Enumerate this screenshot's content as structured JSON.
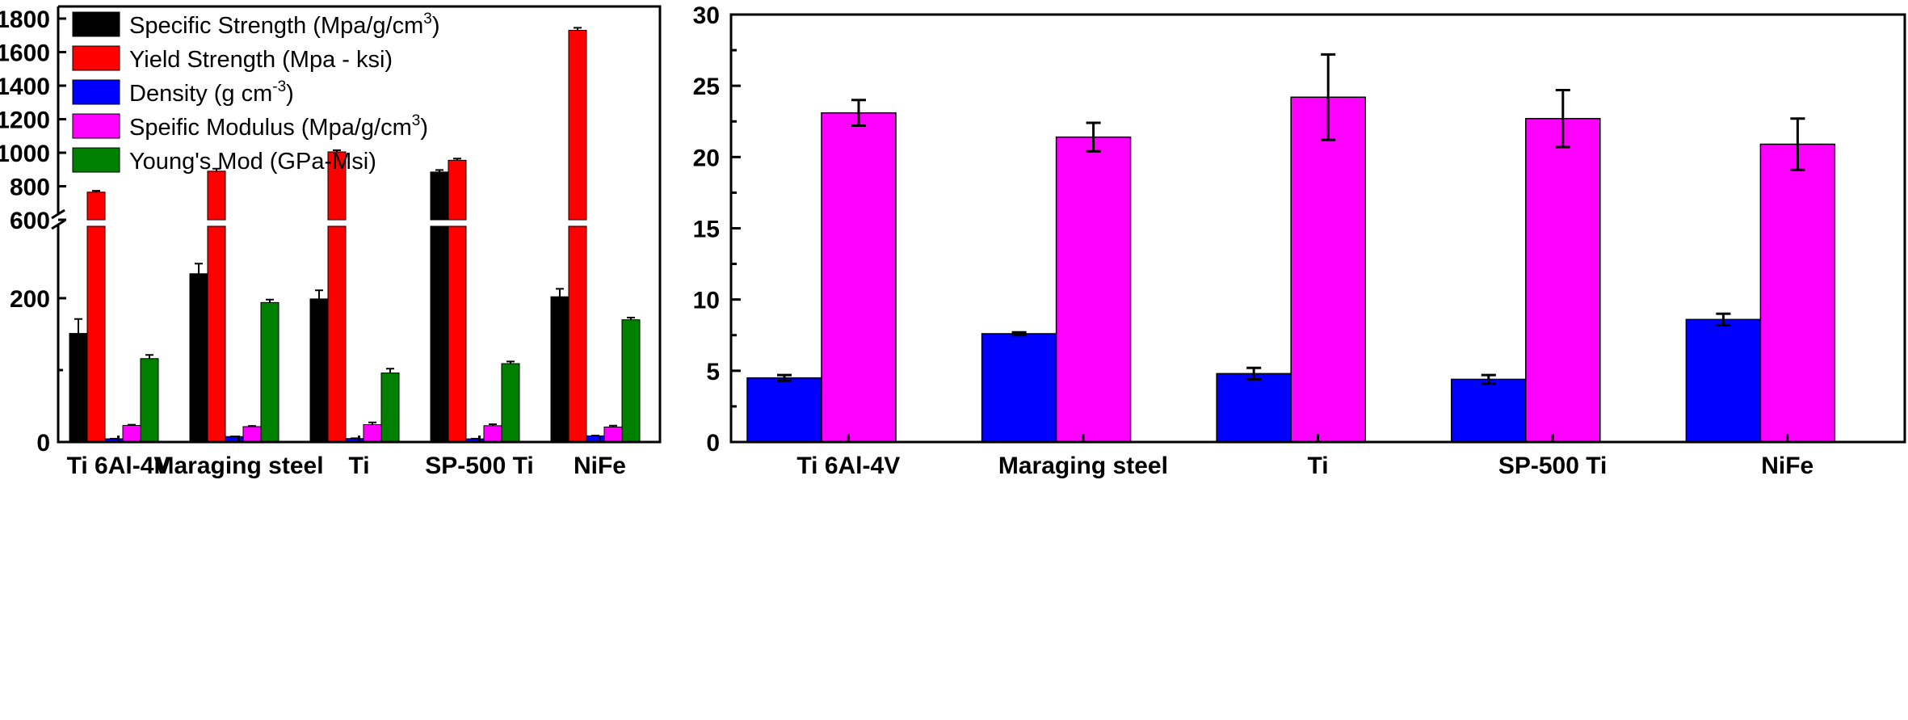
{
  "chart_data": [
    {
      "type": "bar",
      "categories": [
        "Ti 6Al-4V",
        "Maraging steel",
        "Ti",
        "SP-500 Ti",
        "NiFe"
      ],
      "axis": {
        "broken": true,
        "lower_range": [
          0,
          300
        ],
        "upper_range": [
          600,
          1800
        ],
        "lower_ticks": [
          "0",
          "200"
        ],
        "upper_ticks": [
          "600",
          "800",
          "1000",
          "1200",
          "1400",
          "1600",
          "1800"
        ]
      },
      "legend_position": "top-left",
      "series": [
        {
          "name": "Specific Strength (Mpa/g/cm",
          "sup": "3",
          "name_end": ")",
          "color": "#000000",
          "values": [
            151,
            234,
            199,
            885,
            202
          ],
          "errors": [
            20,
            14,
            12,
            12,
            11
          ]
        },
        {
          "name": "Yield Strength (Mpa - ksi)",
          "sup": "",
          "name_end": "",
          "color": "#ff0000",
          "values": [
            765,
            890,
            1005,
            955,
            1730
          ],
          "errors": [
            8,
            15,
            10,
            10,
            15
          ]
        },
        {
          "name": "Density (g cm",
          "sup": "-3",
          "name_end": ")",
          "color": "#0000ff",
          "values": [
            4.5,
            7.6,
            4.8,
            4.4,
            8.6
          ],
          "errors": [
            0.2,
            0.1,
            0.4,
            0.3,
            0.4
          ]
        },
        {
          "name": "Speific Modulus (Mpa/g/cm",
          "sup": "3",
          "name_end": ")",
          "color": "#ff00ff",
          "values": [
            23.1,
            21.4,
            24.2,
            22.7,
            20.9
          ],
          "errors": [
            0.9,
            1.0,
            3.0,
            2.0,
            1.8
          ]
        },
        {
          "name": "Young's Mod (GPa-Msi)",
          "sup": "",
          "name_end": "",
          "color": "#008000",
          "values": [
            116,
            194,
            96,
            109,
            170
          ],
          "errors": [
            5,
            4,
            6,
            3,
            3
          ]
        }
      ]
    },
    {
      "type": "bar",
      "categories": [
        "Ti 6Al-4V",
        "Maraging steel",
        "Ti",
        "SP-500 Ti",
        "NiFe"
      ],
      "ylim": [
        0,
        30
      ],
      "yticks": [
        "0",
        "5",
        "10",
        "15",
        "20",
        "25",
        "30"
      ],
      "series": [
        {
          "color": "#0000ff",
          "values": [
            4.5,
            7.6,
            4.8,
            4.4,
            8.6
          ],
          "errors": [
            0.2,
            0.1,
            0.4,
            0.3,
            0.4
          ]
        },
        {
          "color": "#ff00ff",
          "values": [
            23.1,
            21.4,
            24.2,
            22.7,
            20.9
          ],
          "errors": [
            0.9,
            1.0,
            3.0,
            2.0,
            1.8
          ]
        }
      ]
    }
  ]
}
